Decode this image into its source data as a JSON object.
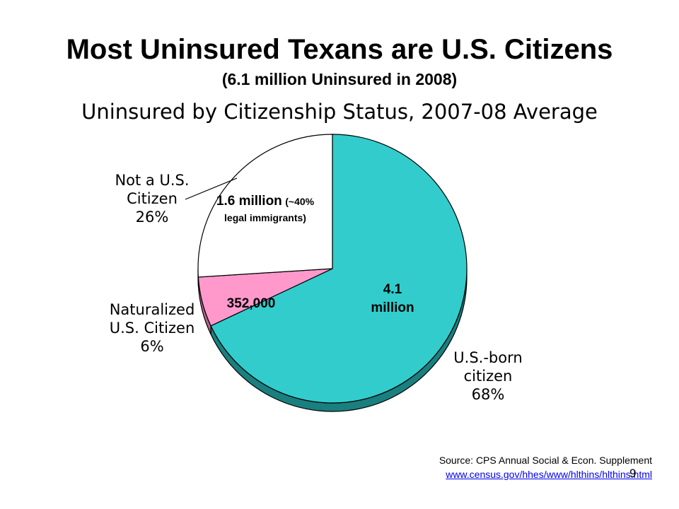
{
  "slide": {
    "title": "Most Uninsured Texans are U.S. Citizens",
    "subtitle": "(6.1 million Uninsured in 2008)",
    "page_number": "9"
  },
  "source": {
    "text": "Source: CPS Annual Social & Econ. Supplement",
    "link": "www.census.gov/hhes/www/hlthins/hlthins.html"
  },
  "labels": {
    "not_citizen": {
      "line1": "Not a U.S.",
      "line2": "Citizen",
      "pct": "26%"
    },
    "naturalized": {
      "line1": "Naturalized",
      "line2": "U.S. Citizen",
      "pct": "6%"
    },
    "us_born": {
      "line1": "U.S.-born",
      "line2": "citizen",
      "pct": "68%"
    },
    "not_citizen_count": {
      "main": "1.6 million",
      "note1": "(~40%",
      "note2": "legal immigrants)"
    },
    "naturalized_count": "352,000",
    "us_born_count": {
      "line1": "4.1",
      "line2": "million"
    }
  },
  "chart_data": {
    "type": "pie",
    "title": "Uninsured by Citizenship Status, 2007-08 Average",
    "start_angle_deg": 0,
    "direction": "clockwise",
    "slices": [
      {
        "label": "U.S.-born citizen",
        "value": 68,
        "color": "#33cccc",
        "side_color": "#1a7f7f"
      },
      {
        "label": "Naturalized U.S. Citizen",
        "value": 6,
        "color": "#ff99cc",
        "side_color": "#b3668f"
      },
      {
        "label": "Not a U.S. Citizen",
        "value": 26,
        "color": "#ffffff",
        "side_color": "#cccccc"
      }
    ]
  }
}
